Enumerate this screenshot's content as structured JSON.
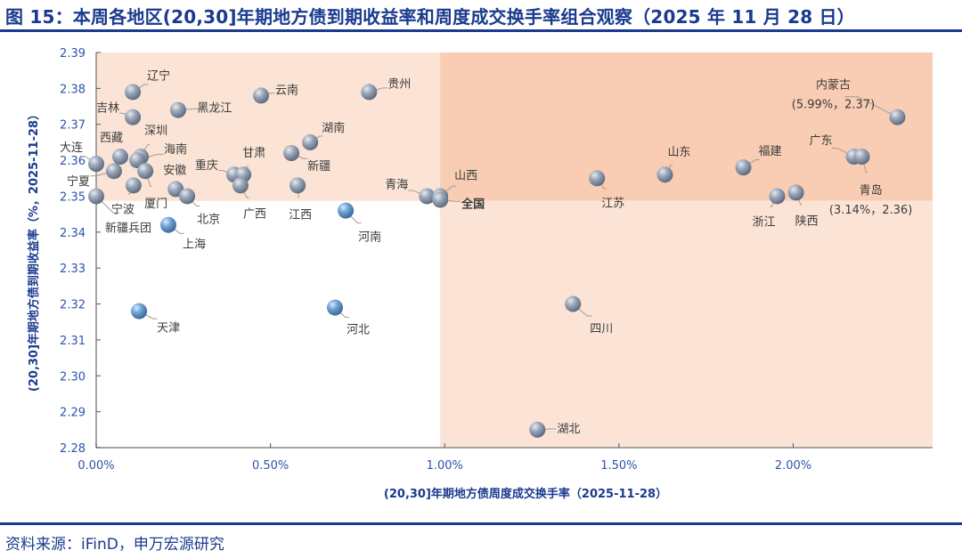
{
  "title": "图 15：本周各地区(20,30]年期地方债到期收益率和周度成交换手率组合观察（2025 年 11 月 28 日）",
  "footer": "资料来源：iFinD，申万宏源研究",
  "colors": {
    "title": "#1a3a8f",
    "quad_light": "#fbe4d6",
    "quad_dark": "#f8cdb3",
    "highlight": "#ff0000",
    "point": "#8fa3bd"
  },
  "chart_data": {
    "type": "scatter",
    "xlabel": "(20,30]年期地方债周度成交换手率（2025-11-28）",
    "ylabel": "(20,30]年期地方债到期收益率（%，2025-11-28）",
    "xlim": [
      0,
      2.4
    ],
    "ylim": [
      2.28,
      2.39
    ],
    "x_unit": "%",
    "x_ticks": [
      "0.00%",
      "0.50%",
      "1.00%",
      "1.50%",
      "2.00%"
    ],
    "x_tick_values": [
      0,
      0.5,
      1.0,
      1.5,
      2.0
    ],
    "y_ticks": [
      "2.28",
      "2.29",
      "2.30",
      "2.31",
      "2.32",
      "2.33",
      "2.34",
      "2.35",
      "2.36",
      "2.37",
      "2.38",
      "2.39"
    ],
    "y_tick_values": [
      2.28,
      2.29,
      2.3,
      2.31,
      2.32,
      2.33,
      2.34,
      2.35,
      2.36,
      2.37,
      2.38,
      2.39
    ],
    "quadrant_divider": {
      "x": 0.987,
      "y": 2.3487
    },
    "grid": false,
    "points": [
      {
        "name": "辽宁",
        "x": 0.105,
        "y": 2.379
      },
      {
        "name": "吉林",
        "x": 0.105,
        "y": 2.372
      },
      {
        "name": "黑龙江",
        "x": 0.235,
        "y": 2.374
      },
      {
        "name": "云南",
        "x": 0.473,
        "y": 2.378
      },
      {
        "name": "贵州",
        "x": 0.783,
        "y": 2.379
      },
      {
        "name": "湖南",
        "x": 0.614,
        "y": 2.365
      },
      {
        "name": "新疆",
        "x": 0.56,
        "y": 2.362
      },
      {
        "name": "西藏",
        "x": 0.069,
        "y": 2.361
      },
      {
        "name": "大连",
        "x": 0.0,
        "y": 2.359
      },
      {
        "name": "宁夏",
        "x": 0.051,
        "y": 2.357
      },
      {
        "name": "深圳",
        "x": 0.128,
        "y": 2.361
      },
      {
        "name": "海南",
        "x": 0.118,
        "y": 2.36
      },
      {
        "name": "厦门",
        "x": 0.141,
        "y": 2.357
      },
      {
        "name": "宁波",
        "x": 0.107,
        "y": 2.353
      },
      {
        "name": "新疆兵团",
        "x": 0.0,
        "y": 2.35
      },
      {
        "name": "安徽",
        "x": 0.228,
        "y": 2.352
      },
      {
        "name": "北京",
        "x": 0.261,
        "y": 2.35
      },
      {
        "name": "重庆",
        "x": 0.396,
        "y": 2.356
      },
      {
        "name": "甘肃",
        "x": 0.422,
        "y": 2.356
      },
      {
        "name": "广西",
        "x": 0.414,
        "y": 2.353
      },
      {
        "name": "江西",
        "x": 0.578,
        "y": 2.353
      },
      {
        "name": "上海",
        "x": 0.207,
        "y": 2.342
      },
      {
        "name": "河南",
        "x": 0.716,
        "y": 2.346
      },
      {
        "name": "青海",
        "x": 0.949,
        "y": 2.35
      },
      {
        "name": "山西",
        "x": 0.987,
        "y": 2.35
      },
      {
        "name": "全国",
        "x": 0.987,
        "y": 2.349,
        "highlight": true
      },
      {
        "name": "江苏",
        "x": 1.437,
        "y": 2.355
      },
      {
        "name": "山东",
        "x": 1.632,
        "y": 2.356
      },
      {
        "name": "福建",
        "x": 1.857,
        "y": 2.358
      },
      {
        "name": "广东",
        "x": 2.174,
        "y": 2.361
      },
      {
        "name": "青岛",
        "x": 2.197,
        "y": 2.361,
        "note": "(3.14%，2.36)"
      },
      {
        "name": "内蒙古",
        "x": 2.299,
        "y": 2.372,
        "note": "(5.99%，2.37)"
      },
      {
        "name": "浙江",
        "x": 1.954,
        "y": 2.35
      },
      {
        "name": "陕西",
        "x": 2.008,
        "y": 2.351
      },
      {
        "name": "天津",
        "x": 0.123,
        "y": 2.318
      },
      {
        "name": "河北",
        "x": 0.685,
        "y": 2.319
      },
      {
        "name": "四川",
        "x": 1.368,
        "y": 2.32
      },
      {
        "name": "湖北",
        "x": 1.266,
        "y": 2.285
      }
    ]
  }
}
